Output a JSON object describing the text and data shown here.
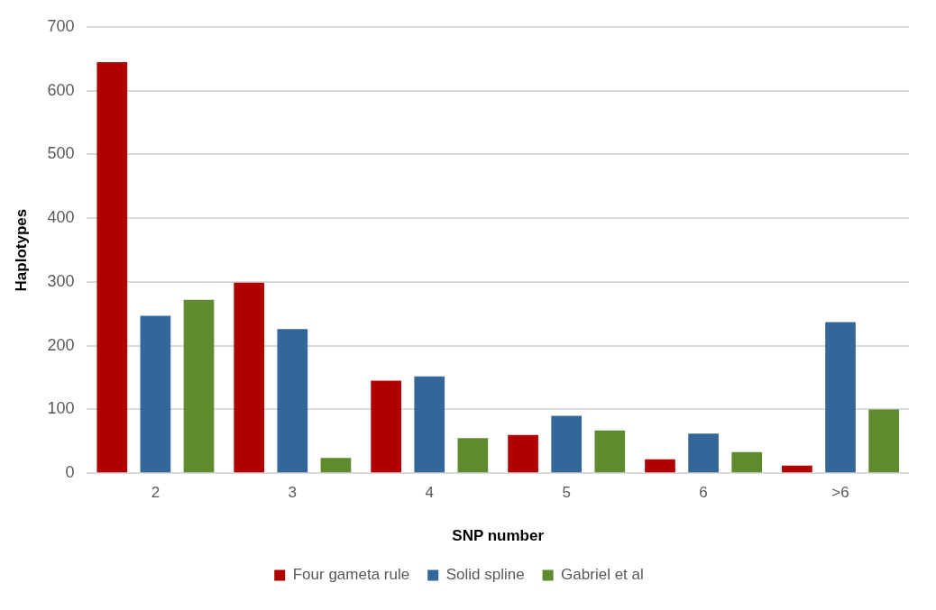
{
  "chart_data": {
    "type": "bar",
    "xlabel": "SNP number",
    "ylabel": "Haplotypes",
    "categories": [
      "2",
      "3",
      "4",
      "5",
      "6",
      ">6"
    ],
    "series": [
      {
        "name": "Four gameta rule",
        "color": "#b00000",
        "values": [
          645,
          299,
          145,
          60,
          22,
          12
        ]
      },
      {
        "name": "Solid spline",
        "color": "#336699",
        "values": [
          247,
          226,
          152,
          90,
          62,
          237
        ]
      },
      {
        "name": "Gabriel et al",
        "color": "#5f8a2e",
        "values": [
          272,
          24,
          55,
          67,
          33,
          100
        ]
      }
    ],
    "ylim": [
      0,
      700
    ],
    "yticks": [
      0,
      100,
      200,
      300,
      400,
      500,
      600,
      700
    ],
    "grid": "y",
    "legend": "bottom"
  }
}
